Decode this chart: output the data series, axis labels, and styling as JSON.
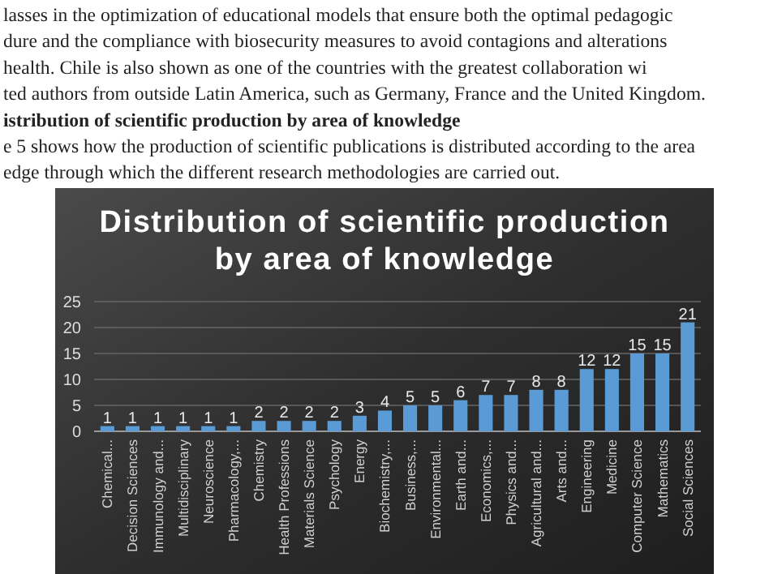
{
  "chart_data": {
    "type": "bar",
    "title": "Distribution  of scientific  production by area of knowledge",
    "annotations": [
      "lasses in the optimization of educational models that ensure both the optimal pedagogic",
      "dure and the compliance with biosecurity measures to avoid contagions and alterations",
      "health. Chile is also shown as one of the countries with the greatest collaboration wi",
      "ted authors from outside Latin America, such as Germany, France and the United Kingdom.",
      "istribution of scientific production by area of knowledge",
      "e 5 shows how the production of scientific publications is distributed according to the area",
      "edge through which the different research methodologies are carried out."
    ],
    "categories": [
      "Chemical...",
      "Decision Sciences",
      "Immunology and...",
      "Multidisciplinary",
      "Neuroscience",
      "Pharmacology,...",
      "Chemistry",
      "Health Professions",
      "Materials Science",
      "Psychology",
      "Energy",
      "Biochemistry,...",
      "Business,...",
      "Environmental...",
      "Earth and...",
      "Economics,...",
      "Physics and...",
      "Agricultural and...",
      "Arts and...",
      "Engineering",
      "Medicine",
      "Computer Science",
      "Mathematics",
      "Social Sciences"
    ],
    "values": [
      1,
      1,
      1,
      1,
      1,
      1,
      2,
      2,
      2,
      2,
      3,
      4,
      5,
      5,
      6,
      7,
      7,
      8,
      8,
      12,
      12,
      15,
      15,
      21
    ],
    "color": "#5b9bd5",
    "ylim": [
      0,
      25
    ],
    "yticks": [
      0,
      5,
      10,
      15,
      20,
      25
    ],
    "grid": "y",
    "data_labels": true
  }
}
